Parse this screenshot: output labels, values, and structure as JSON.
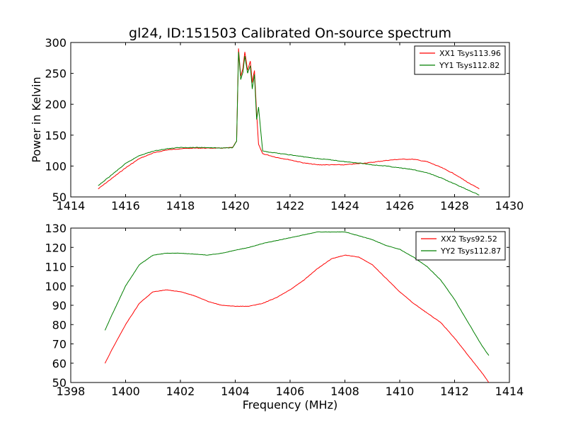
{
  "chart_data": [
    {
      "type": "line",
      "title": "gl24, ID:151503 Calibrated On-source spectrum",
      "xlabel": "",
      "ylabel": "Power in Kelvin",
      "xlim": [
        1414,
        1430
      ],
      "ylim": [
        50,
        300
      ],
      "xticks": [
        "1414",
        "1416",
        "1418",
        "1420",
        "1422",
        "1424",
        "1426",
        "1428",
        "1430"
      ],
      "yticks": [
        "50",
        "100",
        "150",
        "200",
        "250",
        "300"
      ],
      "legend_position": "top-right",
      "series": [
        {
          "name": "XX1 Tsys113.96",
          "color": "#ff0000",
          "x": [
            1415.0,
            1415.5,
            1416.0,
            1416.5,
            1417.0,
            1417.5,
            1418.0,
            1418.5,
            1419.0,
            1419.5,
            1419.9,
            1420.05,
            1420.12,
            1420.2,
            1420.28,
            1420.35,
            1420.45,
            1420.55,
            1420.62,
            1420.7,
            1420.78,
            1420.85,
            1421.0,
            1421.5,
            1422.0,
            1422.5,
            1423.0,
            1423.5,
            1424.0,
            1424.5,
            1425.0,
            1425.5,
            1426.0,
            1426.5,
            1427.0,
            1427.5,
            1428.0,
            1428.5,
            1428.9
          ],
          "y": [
            63,
            80,
            97,
            112,
            121,
            126,
            128,
            129,
            129,
            129,
            130,
            140,
            290,
            245,
            258,
            285,
            255,
            270,
            235,
            255,
            185,
            135,
            120,
            114,
            110,
            105,
            102,
            102,
            102,
            104,
            106,
            109,
            111,
            111,
            107,
            98,
            87,
            73,
            63
          ]
        },
        {
          "name": "YY1 Tsys112.82",
          "color": "#007f00",
          "x": [
            1415.0,
            1415.5,
            1416.0,
            1416.5,
            1417.0,
            1417.5,
            1418.0,
            1418.5,
            1419.0,
            1419.5,
            1419.9,
            1420.05,
            1420.12,
            1420.2,
            1420.28,
            1420.35,
            1420.45,
            1420.55,
            1420.62,
            1420.7,
            1420.78,
            1420.85,
            1421.0,
            1421.5,
            1422.0,
            1422.5,
            1423.0,
            1423.5,
            1424.0,
            1424.5,
            1425.0,
            1425.5,
            1426.0,
            1426.5,
            1427.0,
            1427.5,
            1428.0,
            1428.5,
            1428.9
          ],
          "y": [
            68,
            86,
            104,
            117,
            124,
            128,
            130,
            130,
            130,
            129,
            130,
            140,
            285,
            240,
            252,
            278,
            250,
            262,
            225,
            248,
            175,
            195,
            124,
            121,
            118,
            115,
            112,
            110,
            107,
            105,
            102,
            100,
            97,
            94,
            89,
            81,
            71,
            61,
            53
          ]
        }
      ]
    },
    {
      "type": "line",
      "title": "",
      "xlabel": "Frequency (MHz)",
      "ylabel": "",
      "xlim": [
        1398,
        1414
      ],
      "ylim": [
        50,
        130
      ],
      "xticks": [
        "1398",
        "1400",
        "1402",
        "1404",
        "1406",
        "1408",
        "1410",
        "1412",
        "1414"
      ],
      "yticks": [
        "50",
        "60",
        "70",
        "80",
        "90",
        "100",
        "110",
        "120",
        "130"
      ],
      "legend_position": "top-right",
      "series": [
        {
          "name": "XX2 Tsys92.52",
          "color": "#ff0000",
          "x": [
            1399.25,
            1399.5,
            1400.0,
            1400.5,
            1401.0,
            1401.5,
            1402.0,
            1402.5,
            1403.0,
            1403.5,
            1404.0,
            1404.5,
            1405.0,
            1405.5,
            1406.0,
            1406.5,
            1407.0,
            1407.5,
            1408.0,
            1408.5,
            1409.0,
            1409.5,
            1410.0,
            1410.5,
            1411.0,
            1411.5,
            1412.0,
            1412.5,
            1413.0,
            1413.25
          ],
          "y": [
            60,
            67,
            80,
            91,
            97,
            98,
            97,
            95,
            92,
            90,
            89.5,
            89.5,
            91,
            94,
            98,
            103,
            109,
            114,
            116,
            115,
            111,
            104,
            97,
            91,
            86,
            81,
            73,
            64,
            55,
            50
          ]
        },
        {
          "name": "YY2 Tsys112.87",
          "color": "#007f00",
          "x": [
            1399.25,
            1399.5,
            1400.0,
            1400.5,
            1401.0,
            1401.5,
            1402.0,
            1402.5,
            1403.0,
            1403.5,
            1404.0,
            1404.5,
            1405.0,
            1405.5,
            1406.0,
            1406.5,
            1407.0,
            1407.5,
            1408.0,
            1408.5,
            1409.0,
            1409.5,
            1410.0,
            1410.5,
            1411.0,
            1411.5,
            1412.0,
            1412.5,
            1413.0,
            1413.25
          ],
          "y": [
            77,
            85,
            100,
            111,
            116,
            117,
            117,
            116.5,
            116,
            117,
            118.5,
            120,
            122,
            123.5,
            125,
            126.5,
            128,
            128,
            128,
            126,
            124,
            121,
            119,
            115,
            110,
            103,
            93,
            81,
            69,
            64
          ]
        }
      ]
    }
  ]
}
